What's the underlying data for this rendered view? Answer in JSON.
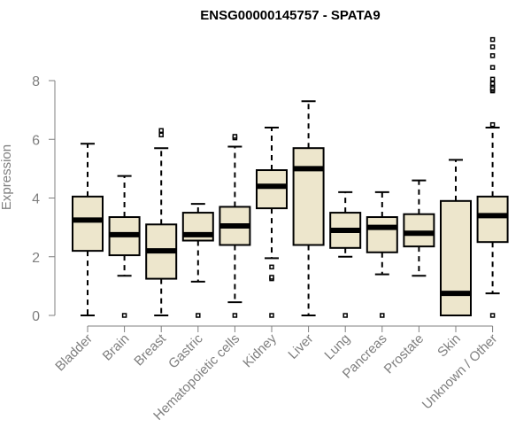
{
  "chart_data": {
    "type": "boxplot",
    "title": "ENSG00000145757 - SPATA9",
    "xlabel": "",
    "ylabel": "Expression",
    "ylim": [
      0,
      9.6
    ],
    "yticks": [
      0,
      2,
      4,
      6,
      8
    ],
    "box_fill": "#ede6cc",
    "box_stroke": "#000000",
    "categories": [
      "Bladder",
      "Brain",
      "Breast",
      "Gastric",
      "Hematopoietic cells",
      "Kidney",
      "Liver",
      "Lung",
      "Pancreas",
      "Prostate",
      "Skin",
      "Unknown / Other"
    ],
    "boxes": [
      {
        "name": "Bladder",
        "whisker_low": 0,
        "q1": 2.2,
        "median": 3.25,
        "q3": 4.05,
        "whisker_high": 5.85,
        "outliers": []
      },
      {
        "name": "Brain",
        "whisker_low": 1.35,
        "q1": 2.05,
        "median": 2.75,
        "q3": 3.35,
        "whisker_high": 4.75,
        "outliers": [
          0
        ]
      },
      {
        "name": "Breast",
        "whisker_low": 0,
        "q1": 1.25,
        "median": 2.2,
        "q3": 3.1,
        "whisker_high": 5.7,
        "outliers": [
          6.15,
          6.3
        ]
      },
      {
        "name": "Gastric",
        "whisker_low": 1.15,
        "q1": 2.55,
        "median": 2.75,
        "q3": 3.5,
        "whisker_high": 3.8,
        "outliers": [
          0
        ]
      },
      {
        "name": "Hematopoietic cells",
        "whisker_low": 0.45,
        "q1": 2.4,
        "median": 3.05,
        "q3": 3.7,
        "whisker_high": 5.75,
        "outliers": [
          0,
          6.05,
          6.1
        ]
      },
      {
        "name": "Kidney",
        "whisker_low": 1.95,
        "q1": 3.65,
        "median": 4.4,
        "q3": 4.95,
        "whisker_high": 6.4,
        "outliers": [
          0,
          1.25,
          1.3,
          1.65
        ]
      },
      {
        "name": "Liver",
        "whisker_low": 0,
        "q1": 2.4,
        "median": 5.0,
        "q3": 5.7,
        "whisker_high": 7.3,
        "outliers": []
      },
      {
        "name": "Lung",
        "whisker_low": 2.0,
        "q1": 2.3,
        "median": 2.9,
        "q3": 3.5,
        "whisker_high": 4.2,
        "outliers": [
          0
        ]
      },
      {
        "name": "Pancreas",
        "whisker_low": 1.4,
        "q1": 2.15,
        "median": 3.0,
        "q3": 3.35,
        "whisker_high": 4.2,
        "outliers": [
          0
        ]
      },
      {
        "name": "Prostate",
        "whisker_low": 1.35,
        "q1": 2.35,
        "median": 2.8,
        "q3": 3.45,
        "whisker_high": 4.6,
        "outliers": []
      },
      {
        "name": "Skin",
        "whisker_low": 0,
        "q1": 0,
        "median": 0.75,
        "q3": 3.9,
        "whisker_high": 5.3,
        "outliers": []
      },
      {
        "name": "Unknown / Other",
        "whisker_low": 0.75,
        "q1": 2.5,
        "median": 3.4,
        "q3": 4.05,
        "whisker_high": 6.4,
        "outliers": [
          0,
          6.5,
          7.65,
          7.7,
          7.75,
          7.85,
          7.9,
          8.05,
          8.45,
          8.85,
          9.15,
          9.4
        ]
      }
    ]
  }
}
